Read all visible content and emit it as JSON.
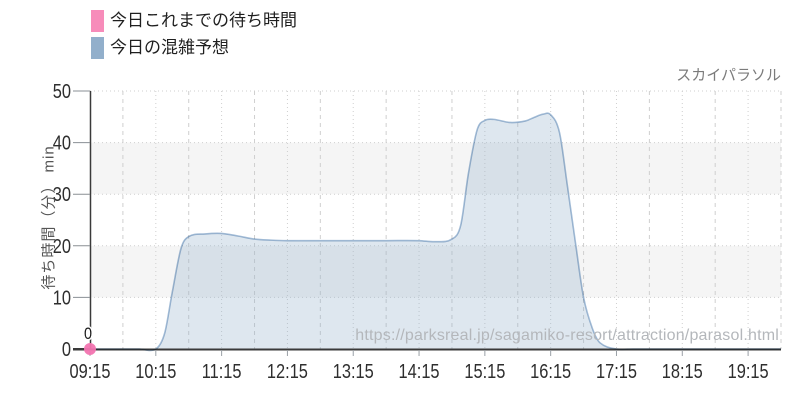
{
  "header": {
    "title": "スカイパラソル"
  },
  "legend": {
    "items": [
      {
        "label": "今日これまでの待ち時間",
        "color": "#f78cba"
      },
      {
        "label": "今日の混雑予想",
        "color": "#92afcb"
      }
    ]
  },
  "watermark": {
    "text": "https://parksreal.jp/sagamiko-resort/attraction/parasol.html"
  },
  "chart_data": {
    "type": "area",
    "title": "スカイパラソル",
    "x_axis": {
      "start": "09:15",
      "end": "19:45",
      "tick_labels": [
        "09:15",
        "10:15",
        "11:15",
        "12:15",
        "13:15",
        "14:15",
        "15:15",
        "16:15",
        "17:15",
        "18:15",
        "19:15"
      ],
      "major_grid": "dotted at every hh:15",
      "minor_grid": "dashed at every hh:45"
    },
    "y_axis": {
      "title": "待ち時間（分） min",
      "ticks": [
        0,
        10,
        20,
        30,
        40,
        50
      ],
      "range": [
        0,
        50
      ]
    },
    "bands": {
      "color": "#f5f5f5",
      "ranges": [
        [
          10,
          20
        ],
        [
          30,
          40
        ]
      ]
    },
    "colors": {
      "grid": "#cfcfcf",
      "axis": "#3a3a3a",
      "tick_text": "#2e2e2e",
      "area_stroke": "#a5bed8",
      "area_fill": "rgba(145,174,202,0.30)",
      "point_pink": "rgba(242,116,176,0.95)"
    },
    "series": [
      {
        "name": "今日これまでの待ち時間",
        "type": "scatter",
        "points": [
          {
            "time": "09:15",
            "value": 0,
            "label": "0"
          }
        ]
      },
      {
        "name": "今日の混雑予想",
        "type": "area",
        "points": [
          [
            "09:15",
            0
          ],
          [
            "09:30",
            0
          ],
          [
            "09:45",
            0
          ],
          [
            "10:00",
            0
          ],
          [
            "10:15",
            0
          ],
          [
            "10:23",
            3
          ],
          [
            "10:30",
            11
          ],
          [
            "10:38",
            19.5
          ],
          [
            "10:45",
            21.8
          ],
          [
            "11:00",
            22.3
          ],
          [
            "11:15",
            22.4
          ],
          [
            "11:30",
            21.9
          ],
          [
            "11:45",
            21.3
          ],
          [
            "12:00",
            21.1
          ],
          [
            "12:15",
            21
          ],
          [
            "12:45",
            21
          ],
          [
            "13:15",
            21
          ],
          [
            "13:45",
            21
          ],
          [
            "14:15",
            21
          ],
          [
            "14:30",
            20.8
          ],
          [
            "14:45",
            21.3
          ],
          [
            "14:53",
            24
          ],
          [
            "15:00",
            34
          ],
          [
            "15:08",
            42.5
          ],
          [
            "15:15",
            44.3
          ],
          [
            "15:23",
            44.5
          ],
          [
            "15:38",
            43.9
          ],
          [
            "15:52",
            44.2
          ],
          [
            "16:00",
            44.9
          ],
          [
            "16:08",
            45.5
          ],
          [
            "16:15",
            45.4
          ],
          [
            "16:23",
            42
          ],
          [
            "16:30",
            32
          ],
          [
            "16:38",
            20
          ],
          [
            "16:45",
            10
          ],
          [
            "16:53",
            4
          ],
          [
            "17:00",
            1.2
          ],
          [
            "17:15",
            0
          ],
          [
            "17:30",
            0
          ],
          [
            "17:45",
            0
          ],
          [
            "18:15",
            0
          ],
          [
            "18:45",
            0
          ],
          [
            "19:15",
            0
          ],
          [
            "19:45",
            0
          ]
        ]
      }
    ]
  }
}
